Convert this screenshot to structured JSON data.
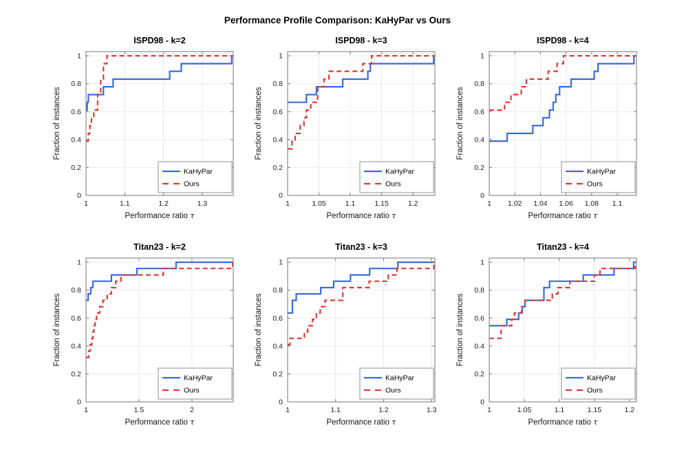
{
  "figure_title": "Performance Profile Comparison: KaHyPar vs Ours",
  "colors": {
    "kahypar": "#3a6bd6",
    "ours": "#d33d38",
    "grid": "#e9e9e9",
    "axis_box": "#767676",
    "tick_text": "#1a1a1a",
    "legend_border": "#8c8c8c"
  },
  "legend": {
    "entries": [
      "KaHyPar",
      "Ours"
    ]
  },
  "chart_data": [
    {
      "type": "line",
      "title": "ISPD98 - k=2",
      "xlabel": "Performance ratio τ",
      "ylabel": "Fraction of instances",
      "xlim": [
        1,
        1.38
      ],
      "ylim": [
        0,
        1.03
      ],
      "xticks": [
        1,
        1.1,
        1.2,
        1.3
      ],
      "xtick_labels": [
        "1",
        "1.1",
        "1.2",
        "1.3"
      ],
      "yticks": [
        0,
        0.2,
        0.4,
        0.6,
        0.8,
        1
      ],
      "ytick_labels": [
        "0",
        "0.2",
        "0.4",
        "0.6",
        "0.8",
        "1"
      ],
      "grid": true,
      "legend_position": "bottom-right",
      "series": [
        {
          "name": "KaHyPar",
          "color": "#3a6bd6",
          "style": "solid",
          "points": [
            [
              1,
              0.611
            ],
            [
              1.003,
              0.667
            ],
            [
              1.006,
              0.722
            ],
            [
              1.045,
              0.778
            ],
            [
              1.07,
              0.833
            ],
            [
              1.216,
              0.889
            ],
            [
              1.246,
              0.944
            ],
            [
              1.376,
              1.0
            ]
          ]
        },
        {
          "name": "Ours",
          "color": "#d33d38",
          "style": "dashed",
          "points": [
            [
              1,
              0.389
            ],
            [
              1.006,
              0.444
            ],
            [
              1.01,
              0.5
            ],
            [
              1.014,
              0.556
            ],
            [
              1.02,
              0.611
            ],
            [
              1.03,
              0.722
            ],
            [
              1.038,
              0.833
            ],
            [
              1.045,
              0.944
            ],
            [
              1.054,
              1.0
            ]
          ]
        }
      ]
    },
    {
      "type": "line",
      "title": "ISPD98 - k=3",
      "xlabel": "Performance ratio τ",
      "ylabel": "Fraction of instances",
      "xlim": [
        1,
        1.235
      ],
      "ylim": [
        0,
        1.03
      ],
      "xticks": [
        1,
        1.05,
        1.1,
        1.15,
        1.2
      ],
      "xtick_labels": [
        "1",
        "1.05",
        "1.1",
        "1.15",
        "1.2"
      ],
      "yticks": [
        0,
        0.2,
        0.4,
        0.6,
        0.8,
        1
      ],
      "ytick_labels": [
        "0",
        "0.2",
        "0.4",
        "0.6",
        "0.8",
        "1"
      ],
      "grid": true,
      "legend_position": "bottom-right",
      "series": [
        {
          "name": "KaHyPar",
          "color": "#3a6bd6",
          "style": "solid",
          "points": [
            [
              1,
              0.667
            ],
            [
              1.03,
              0.722
            ],
            [
              1.046,
              0.778
            ],
            [
              1.088,
              0.833
            ],
            [
              1.128,
              0.889
            ],
            [
              1.132,
              0.944
            ],
            [
              1.233,
              1.0
            ]
          ]
        },
        {
          "name": "Ours",
          "color": "#d33d38",
          "style": "dashed",
          "points": [
            [
              1,
              0.333
            ],
            [
              1.007,
              0.389
            ],
            [
              1.012,
              0.444
            ],
            [
              1.02,
              0.5
            ],
            [
              1.026,
              0.556
            ],
            [
              1.03,
              0.611
            ],
            [
              1.037,
              0.667
            ],
            [
              1.048,
              0.778
            ],
            [
              1.058,
              0.833
            ],
            [
              1.066,
              0.889
            ],
            [
              1.12,
              0.944
            ],
            [
              1.134,
              1.0
            ]
          ]
        }
      ]
    },
    {
      "type": "line",
      "title": "ISPD98 - k=4",
      "xlabel": "Performance ratio τ",
      "ylabel": "Fraction of instances",
      "xlim": [
        1,
        1.115
      ],
      "ylim": [
        0,
        1.03
      ],
      "xticks": [
        1,
        1.02,
        1.04,
        1.06,
        1.08,
        1.1
      ],
      "xtick_labels": [
        "1",
        "1.02",
        "1.04",
        "1.06",
        "1.08",
        "1.1"
      ],
      "yticks": [
        0,
        0.2,
        0.4,
        0.6,
        0.8,
        1
      ],
      "ytick_labels": [
        "0",
        "0.2",
        "0.4",
        "0.6",
        "0.8",
        "1"
      ],
      "grid": true,
      "legend_position": "bottom-right",
      "series": [
        {
          "name": "KaHyPar",
          "color": "#3a6bd6",
          "style": "solid",
          "points": [
            [
              1,
              0.389
            ],
            [
              1.014,
              0.444
            ],
            [
              1.034,
              0.5
            ],
            [
              1.042,
              0.556
            ],
            [
              1.047,
              0.611
            ],
            [
              1.05,
              0.667
            ],
            [
              1.052,
              0.722
            ],
            [
              1.055,
              0.778
            ],
            [
              1.064,
              0.833
            ],
            [
              1.082,
              0.889
            ],
            [
              1.085,
              0.944
            ],
            [
              1.113,
              1.0
            ]
          ]
        },
        {
          "name": "Ours",
          "color": "#d33d38",
          "style": "dashed",
          "points": [
            [
              1,
              0.611
            ],
            [
              1.012,
              0.667
            ],
            [
              1.017,
              0.722
            ],
            [
              1.025,
              0.778
            ],
            [
              1.029,
              0.833
            ],
            [
              1.046,
              0.889
            ],
            [
              1.053,
              0.944
            ],
            [
              1.058,
              1.0
            ]
          ]
        }
      ]
    },
    {
      "type": "line",
      "title": "Titan23 - k=2",
      "xlabel": "Performance ratio τ",
      "ylabel": "Fraction of instances",
      "xlim": [
        1,
        2.39
      ],
      "ylim": [
        0,
        1.03
      ],
      "xticks": [
        1,
        1.5,
        2
      ],
      "xtick_labels": [
        "1",
        "1.5",
        "2"
      ],
      "yticks": [
        0,
        0.2,
        0.4,
        0.6,
        0.8,
        1
      ],
      "ytick_labels": [
        "0",
        "0.2",
        "0.4",
        "0.6",
        "0.8",
        "1"
      ],
      "grid": true,
      "legend_position": "bottom-right",
      "series": [
        {
          "name": "KaHyPar",
          "color": "#3a6bd6",
          "style": "solid",
          "points": [
            [
              1,
              0.727
            ],
            [
              1.02,
              0.773
            ],
            [
              1.045,
              0.818
            ],
            [
              1.065,
              0.864
            ],
            [
              1.24,
              0.909
            ],
            [
              1.48,
              0.955
            ],
            [
              1.85,
              1.0
            ]
          ]
        },
        {
          "name": "Ours",
          "color": "#d33d38",
          "style": "dashed",
          "points": [
            [
              1,
              0.318
            ],
            [
              1.025,
              0.364
            ],
            [
              1.04,
              0.409
            ],
            [
              1.055,
              0.455
            ],
            [
              1.065,
              0.5
            ],
            [
              1.075,
              0.545
            ],
            [
              1.085,
              0.591
            ],
            [
              1.1,
              0.636
            ],
            [
              1.13,
              0.682
            ],
            [
              1.16,
              0.727
            ],
            [
              1.2,
              0.773
            ],
            [
              1.24,
              0.818
            ],
            [
              1.28,
              0.864
            ],
            [
              1.33,
              0.909
            ],
            [
              1.73,
              0.955
            ],
            [
              2.385,
              1.0
            ]
          ]
        }
      ]
    },
    {
      "type": "line",
      "title": "Titan23 - k=3",
      "xlabel": "Performance ratio τ",
      "ylabel": "Fraction of instances",
      "xlim": [
        1,
        1.307
      ],
      "ylim": [
        0,
        1.03
      ],
      "xticks": [
        1,
        1.1,
        1.2,
        1.3
      ],
      "xtick_labels": [
        "1",
        "1.1",
        "1.2",
        "1.3"
      ],
      "yticks": [
        0,
        0.2,
        0.4,
        0.6,
        0.8,
        1
      ],
      "ytick_labels": [
        "0",
        "0.2",
        "0.4",
        "0.6",
        "0.8",
        "1"
      ],
      "grid": true,
      "legend_position": "bottom-right",
      "series": [
        {
          "name": "KaHyPar",
          "color": "#3a6bd6",
          "style": "solid",
          "points": [
            [
              1,
              0.636
            ],
            [
              1.01,
              0.727
            ],
            [
              1.018,
              0.773
            ],
            [
              1.069,
              0.818
            ],
            [
              1.096,
              0.864
            ],
            [
              1.131,
              0.909
            ],
            [
              1.171,
              0.955
            ],
            [
              1.23,
              1.0
            ]
          ]
        },
        {
          "name": "Ours",
          "color": "#d33d38",
          "style": "dashed",
          "points": [
            [
              1,
              0.409
            ],
            [
              1.005,
              0.455
            ],
            [
              1.035,
              0.5
            ],
            [
              1.042,
              0.545
            ],
            [
              1.052,
              0.591
            ],
            [
              1.06,
              0.636
            ],
            [
              1.068,
              0.682
            ],
            [
              1.078,
              0.727
            ],
            [
              1.115,
              0.818
            ],
            [
              1.17,
              0.864
            ],
            [
              1.21,
              0.909
            ],
            [
              1.228,
              0.955
            ],
            [
              1.305,
              1.0
            ]
          ]
        }
      ]
    },
    {
      "type": "line",
      "title": "Titan23 - k=4",
      "xlabel": "Performance ratio τ",
      "ylabel": "Fraction of instances",
      "xlim": [
        1,
        1.21
      ],
      "ylim": [
        0,
        1.03
      ],
      "xticks": [
        1,
        1.05,
        1.1,
        1.15,
        1.2
      ],
      "xtick_labels": [
        "1",
        "1.05",
        "1.1",
        "1.15",
        "1.2"
      ],
      "yticks": [
        0,
        0.2,
        0.4,
        0.6,
        0.8,
        1
      ],
      "ytick_labels": [
        "0",
        "0.2",
        "0.4",
        "0.6",
        "0.8",
        "1"
      ],
      "grid": true,
      "legend_position": "bottom-right",
      "series": [
        {
          "name": "KaHyPar",
          "color": "#3a6bd6",
          "style": "solid",
          "points": [
            [
              1,
              0.545
            ],
            [
              1.025,
              0.591
            ],
            [
              1.042,
              0.636
            ],
            [
              1.047,
              0.682
            ],
            [
              1.051,
              0.727
            ],
            [
              1.078,
              0.818
            ],
            [
              1.086,
              0.864
            ],
            [
              1.134,
              0.909
            ],
            [
              1.178,
              0.955
            ],
            [
              1.206,
              1.0
            ]
          ]
        },
        {
          "name": "Ours",
          "color": "#d33d38",
          "style": "dashed",
          "points": [
            [
              1,
              0.455
            ],
            [
              1.017,
              0.545
            ],
            [
              1.032,
              0.591
            ],
            [
              1.036,
              0.636
            ],
            [
              1.046,
              0.682
            ],
            [
              1.051,
              0.727
            ],
            [
              1.09,
              0.773
            ],
            [
              1.098,
              0.818
            ],
            [
              1.115,
              0.864
            ],
            [
              1.15,
              0.909
            ],
            [
              1.158,
              0.955
            ],
            [
              1.208,
              1.0
            ]
          ]
        }
      ]
    }
  ]
}
